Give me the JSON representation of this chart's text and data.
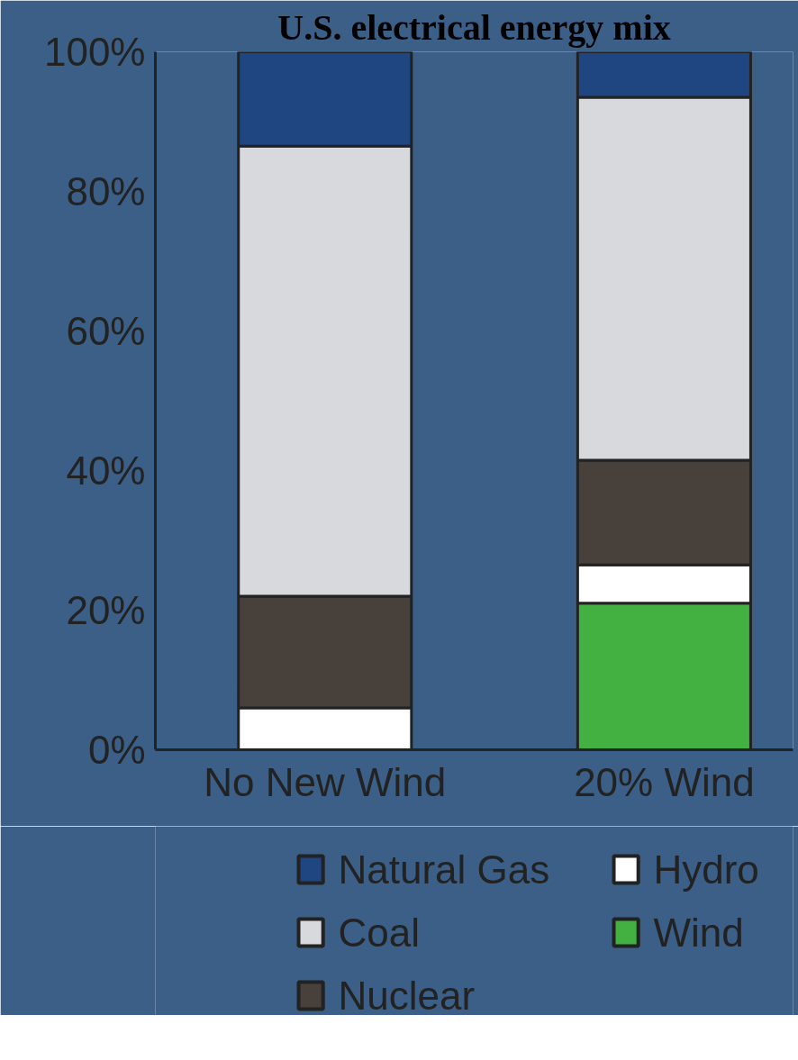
{
  "chart_data": {
    "type": "bar",
    "title": "U.S. electrical energy mix",
    "stacked": true,
    "categories": [
      "No New Wind",
      "20% Wind"
    ],
    "series": [
      {
        "name": "Wind",
        "color": "#42b142",
        "values": [
          0,
          21
        ]
      },
      {
        "name": "Hydro",
        "color": "#ffffff",
        "values": [
          6,
          5.5
        ]
      },
      {
        "name": "Nuclear",
        "color": "#48413b",
        "values": [
          16,
          15
        ]
      },
      {
        "name": "Coal",
        "color": "#d8d9dd",
        "values": [
          64.5,
          52
        ]
      },
      {
        "name": "Natural Gas",
        "color": "#204682",
        "values": [
          13.5,
          6.5
        ]
      }
    ],
    "ylim": [
      0,
      100
    ],
    "yticks": [
      {
        "value": 0,
        "label": "0%"
      },
      {
        "value": 20,
        "label": "20%"
      },
      {
        "value": 40,
        "label": "40%"
      },
      {
        "value": 60,
        "label": "60%"
      },
      {
        "value": 80,
        "label": "80%"
      },
      {
        "value": 100,
        "label": "100%"
      }
    ],
    "grid": false,
    "legend": "bottom"
  }
}
